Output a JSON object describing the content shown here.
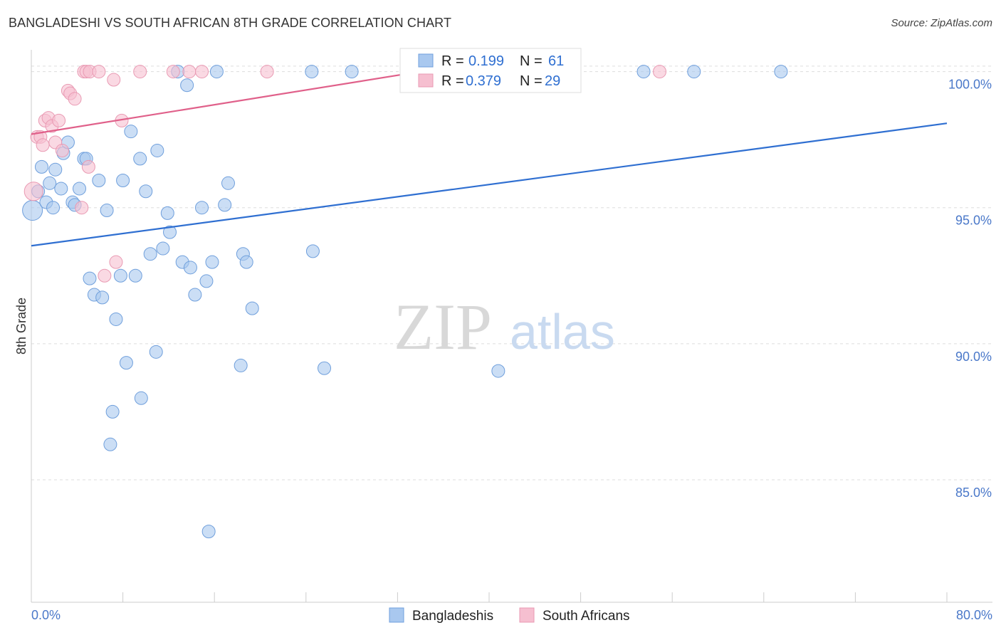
{
  "title": "BANGLADESHI VS SOUTH AFRICAN 8TH GRADE CORRELATION CHART",
  "source": "Source: ZipAtlas.com",
  "watermark": {
    "zip": "ZIP",
    "atlas": "atlas"
  },
  "colors": {
    "blue_fill": "#a9c8ef",
    "blue_stroke": "#6f9fdc",
    "blue_line": "#2f6fd1",
    "pink_fill": "#f6bfd0",
    "pink_stroke": "#e99ab3",
    "pink_line": "#e0608a",
    "grid": "#dddddd",
    "tick": "#4a78c9"
  },
  "legend": {
    "r_label": "R =",
    "n_label": "N =",
    "rows": [
      {
        "r": "0.199",
        "n": "61"
      },
      {
        "r": "0.379",
        "n": "29"
      }
    ]
  },
  "chart_data": {
    "type": "scatter",
    "title": "BANGLADESHI VS SOUTH AFRICAN 8TH GRADE CORRELATION CHART",
    "xlabel": "",
    "ylabel": "8th Grade",
    "xlim": [
      0.0,
      80.0
    ],
    "ylim": [
      80.5,
      100.8
    ],
    "x_tick_labels": [
      "0.0%",
      "80.0%"
    ],
    "y_ticks": [
      85.0,
      90.0,
      95.0,
      100.0
    ],
    "y_tick_labels": [
      "85.0%",
      "90.0%",
      "95.0%",
      "100.0%"
    ],
    "grid": true,
    "legend_position": "top-center",
    "series": [
      {
        "name": "Bangladeshis",
        "color": "#a9c8ef",
        "trend": {
          "x": [
            0.0,
            80.0
          ],
          "y": [
            93.6,
            98.1
          ]
        },
        "points": [
          [
            0.1,
            94.9
          ],
          [
            0.6,
            95.6
          ],
          [
            0.9,
            96.5
          ],
          [
            1.3,
            95.2
          ],
          [
            1.6,
            95.9
          ],
          [
            1.9,
            95.0
          ],
          [
            2.1,
            96.4
          ],
          [
            2.6,
            95.7
          ],
          [
            2.8,
            97.0
          ],
          [
            3.2,
            97.4
          ],
          [
            3.6,
            95.2
          ],
          [
            3.8,
            95.1
          ],
          [
            4.2,
            95.7
          ],
          [
            4.6,
            96.8
          ],
          [
            4.8,
            96.8
          ],
          [
            5.1,
            92.4
          ],
          [
            5.5,
            91.8
          ],
          [
            5.9,
            96.0
          ],
          [
            6.2,
            91.7
          ],
          [
            6.6,
            94.9
          ],
          [
            6.9,
            86.3
          ],
          [
            7.1,
            87.5
          ],
          [
            7.4,
            90.9
          ],
          [
            7.8,
            92.5
          ],
          [
            8.0,
            96.0
          ],
          [
            8.3,
            89.3
          ],
          [
            8.7,
            97.8
          ],
          [
            9.1,
            92.5
          ],
          [
            9.5,
            96.8
          ],
          [
            9.6,
            88.0
          ],
          [
            10.0,
            95.6
          ],
          [
            10.4,
            93.3
          ],
          [
            10.9,
            89.7
          ],
          [
            11.0,
            97.1
          ],
          [
            11.5,
            93.5
          ],
          [
            11.9,
            94.8
          ],
          [
            12.1,
            94.1
          ],
          [
            12.8,
            100.0
          ],
          [
            13.2,
            93.0
          ],
          [
            13.6,
            99.5
          ],
          [
            13.9,
            92.8
          ],
          [
            14.3,
            91.8
          ],
          [
            14.9,
            95.0
          ],
          [
            15.3,
            92.3
          ],
          [
            15.5,
            83.1
          ],
          [
            15.8,
            93.0
          ],
          [
            16.2,
            100.0
          ],
          [
            16.9,
            95.1
          ],
          [
            17.2,
            95.9
          ],
          [
            18.3,
            89.2
          ],
          [
            18.5,
            93.3
          ],
          [
            18.8,
            93.0
          ],
          [
            19.3,
            91.3
          ],
          [
            24.5,
            100.0
          ],
          [
            24.6,
            93.4
          ],
          [
            25.6,
            89.1
          ],
          [
            28.0,
            100.0
          ],
          [
            40.8,
            89.0
          ],
          [
            53.5,
            100.0
          ],
          [
            57.9,
            100.0
          ],
          [
            65.5,
            100.0
          ]
        ]
      },
      {
        "name": "South Africans",
        "color": "#f6bfd0",
        "trend": {
          "x": [
            0.0,
            34.0
          ],
          "y": [
            97.7,
            100.0
          ]
        },
        "points": [
          [
            0.2,
            95.6
          ],
          [
            0.5,
            97.6
          ],
          [
            0.8,
            97.6
          ],
          [
            1.0,
            97.3
          ],
          [
            1.2,
            98.2
          ],
          [
            1.5,
            98.3
          ],
          [
            1.8,
            98.0
          ],
          [
            2.1,
            97.4
          ],
          [
            2.4,
            98.2
          ],
          [
            2.7,
            97.1
          ],
          [
            3.2,
            99.3
          ],
          [
            3.4,
            99.2
          ],
          [
            3.8,
            99.0
          ],
          [
            4.4,
            95.0
          ],
          [
            4.6,
            100.0
          ],
          [
            4.8,
            100.0
          ],
          [
            5.0,
            96.5
          ],
          [
            5.1,
            100.0
          ],
          [
            5.9,
            100.0
          ],
          [
            6.4,
            92.5
          ],
          [
            7.2,
            99.7
          ],
          [
            7.4,
            93.0
          ],
          [
            7.9,
            98.2
          ],
          [
            9.5,
            100.0
          ],
          [
            12.4,
            100.0
          ],
          [
            13.8,
            100.0
          ],
          [
            14.9,
            100.0
          ],
          [
            20.6,
            100.0
          ],
          [
            54.9,
            100.0
          ]
        ]
      }
    ]
  }
}
